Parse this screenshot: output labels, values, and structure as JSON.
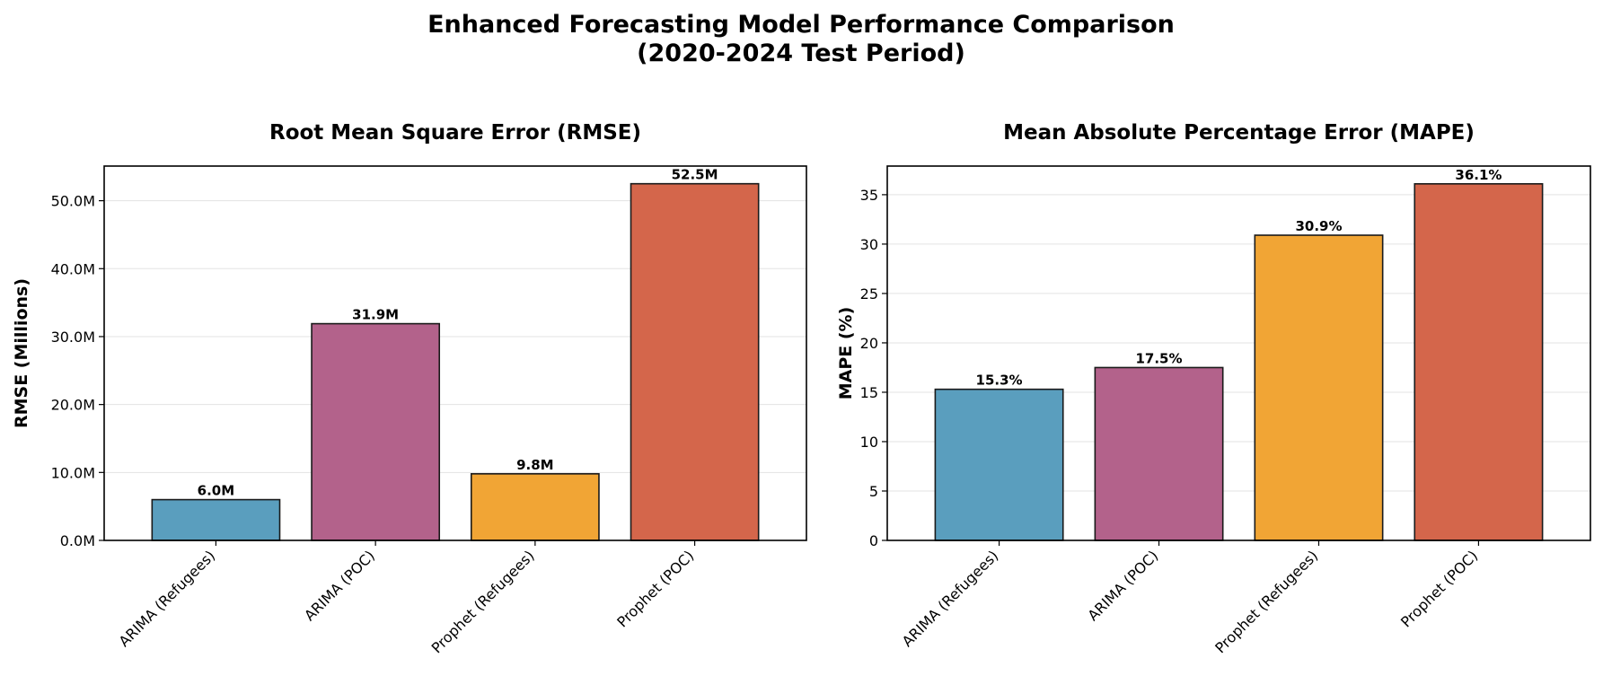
{
  "figure": {
    "title_line1": "Enhanced Forecasting Model Performance Comparison",
    "title_line2": "(2020-2024 Test Period)"
  },
  "chart_data": [
    {
      "type": "bar",
      "title": "Root Mean Square Error (RMSE)",
      "ylabel": "RMSE (Millions)",
      "xlabel": "",
      "categories": [
        "ARIMA (Refugees)",
        "ARIMA (POC)",
        "Prophet (Refugees)",
        "Prophet (POC)"
      ],
      "values": [
        6.0,
        31.9,
        9.8,
        52.5
      ],
      "value_labels": [
        "6.0M",
        "31.9M",
        "9.8M",
        "52.5M"
      ],
      "colors": [
        "#5a9ebe",
        "#b3628b",
        "#f1a535",
        "#d4664b"
      ],
      "ylim": [
        0,
        55.1
      ],
      "yticks": [
        0,
        10,
        20,
        30,
        40,
        50
      ],
      "ytick_labels": [
        "0.0M",
        "10.0M",
        "20.0M",
        "30.0M",
        "40.0M",
        "50.0M"
      ],
      "grid": "y"
    },
    {
      "type": "bar",
      "title": "Mean Absolute Percentage Error (MAPE)",
      "ylabel": "MAPE (%)",
      "xlabel": "",
      "categories": [
        "ARIMA (Refugees)",
        "ARIMA (POC)",
        "Prophet (Refugees)",
        "Prophet (POC)"
      ],
      "values": [
        15.3,
        17.5,
        30.9,
        36.1
      ],
      "value_labels": [
        "15.3%",
        "17.5%",
        "30.9%",
        "36.1%"
      ],
      "colors": [
        "#5a9ebe",
        "#b3628b",
        "#f1a535",
        "#d4664b"
      ],
      "ylim": [
        0,
        37.9
      ],
      "yticks": [
        0,
        5,
        10,
        15,
        20,
        25,
        30,
        35
      ],
      "ytick_labels": [
        "0",
        "5",
        "10",
        "15",
        "20",
        "25",
        "30",
        "35"
      ],
      "grid": "y"
    }
  ]
}
